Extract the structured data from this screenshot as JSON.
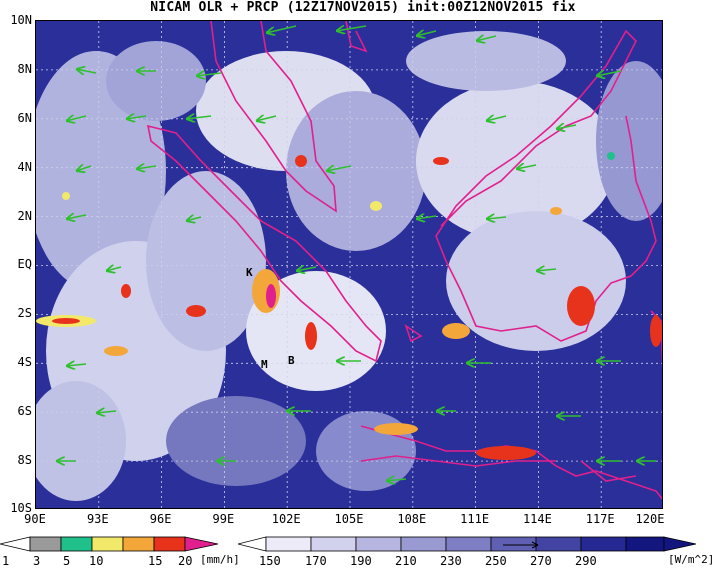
{
  "title": "NICAM OLR + PRCP (12Z17NOV2015) init:00Z12NOV2015 fix",
  "y_axis": [
    "10N",
    "8N",
    "6N",
    "4N",
    "2N",
    "EQ",
    "2S",
    "4S",
    "6S",
    "8S",
    "10S"
  ],
  "x_axis": [
    "90E",
    "93E",
    "96E",
    "99E",
    "102E",
    "105E",
    "108E",
    "111E",
    "114E",
    "117E",
    "120E"
  ],
  "markers": [
    "K",
    "M",
    "B"
  ],
  "precip_bar": {
    "labels": [
      "1",
      "3",
      "5",
      "10",
      "15",
      "20"
    ],
    "unit": "[mm/h]",
    "colors": [
      "#ffffff",
      "#9a9a9a",
      "#1fc08a",
      "#f2e96a",
      "#f3a73a",
      "#e8331c",
      "#e0208c"
    ]
  },
  "olr_bar": {
    "labels": [
      "150",
      "170",
      "190",
      "210",
      "230",
      "250",
      "270",
      "290"
    ],
    "unit": "[W/m^2]",
    "colors": [
      "#ffffff",
      "#ecebf7",
      "#d3d2ee",
      "#b6b6e0",
      "#9a9ad2",
      "#7d7ec4",
      "#5f60b3",
      "#4243a3",
      "#262894",
      "#141680"
    ]
  },
  "colors": {
    "coast": "#e0208c",
    "wind": "#2ec02e",
    "grid": "#cfd0ea"
  }
}
